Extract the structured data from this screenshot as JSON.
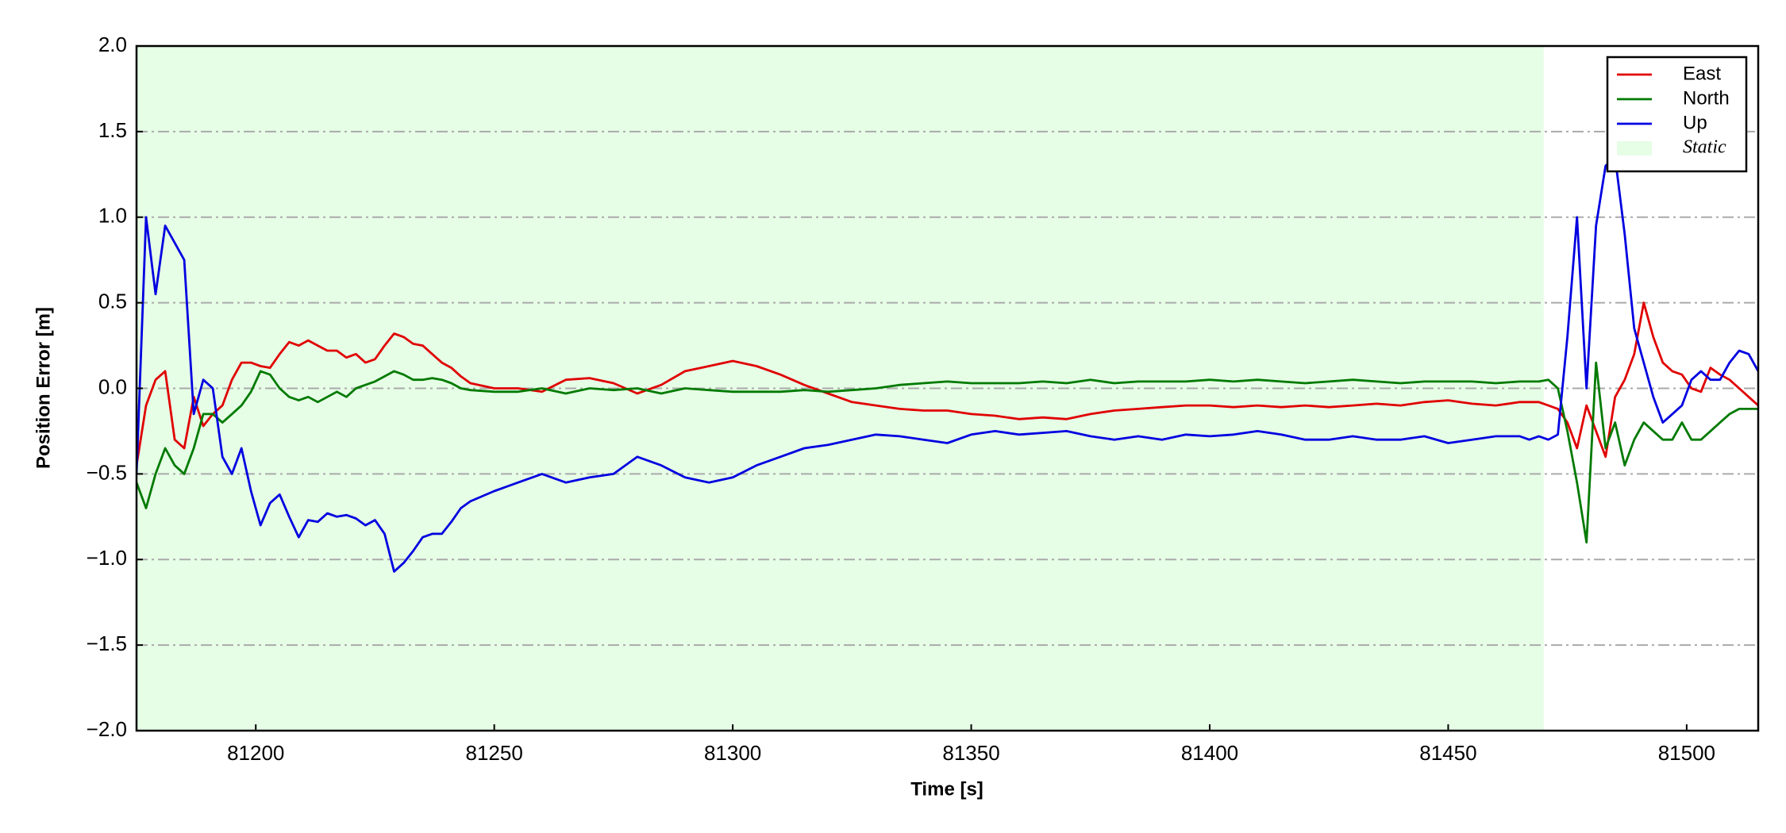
{
  "chart_data": {
    "type": "line",
    "xlabel": "Time [s]",
    "ylabel": "Position Error [m]",
    "xlim": [
      81175,
      81515
    ],
    "ylim": [
      -2,
      2
    ],
    "xticks": [
      81200,
      81250,
      81300,
      81350,
      81400,
      81450,
      81500
    ],
    "yticks": [
      {
        "value": -2,
        "label": "−2.0"
      },
      {
        "value": -1.5,
        "label": "−1.5"
      },
      {
        "value": -1,
        "label": "−1.0"
      },
      {
        "value": -0.5,
        "label": "−0.5"
      },
      {
        "value": 0,
        "label": "0.0"
      },
      0.5,
      {
        "value": 1,
        "label": "1.0"
      },
      1.5,
      {
        "value": 2,
        "label": "2.0"
      }
    ],
    "grid": true,
    "legend": "upper right",
    "static": {
      "label": "Static",
      "range": [
        81175,
        81470
      ],
      "color": "#e6fde6"
    },
    "x": [
      81175,
      81177,
      81179,
      81181,
      81183,
      81185,
      81187,
      81189,
      81191,
      81193,
      81195,
      81197,
      81199,
      81201,
      81203,
      81205,
      81207,
      81209,
      81211,
      81213,
      81215,
      81217,
      81219,
      81221,
      81223,
      81225,
      81227,
      81229,
      81231,
      81233,
      81235,
      81237,
      81239,
      81241,
      81243,
      81245,
      81250,
      81255,
      81260,
      81265,
      81270,
      81275,
      81280,
      81285,
      81290,
      81295,
      81300,
      81305,
      81310,
      81315,
      81320,
      81325,
      81330,
      81335,
      81340,
      81345,
      81350,
      81355,
      81360,
      81365,
      81370,
      81375,
      81380,
      81385,
      81390,
      81395,
      81400,
      81405,
      81410,
      81415,
      81420,
      81425,
      81430,
      81435,
      81440,
      81445,
      81450,
      81455,
      81460,
      81465,
      81467,
      81469,
      81471,
      81473,
      81475,
      81477,
      81479,
      81481,
      81483,
      81485,
      81487,
      81489,
      81491,
      81493,
      81495,
      81497,
      81499,
      81501,
      81503,
      81505,
      81507,
      81509,
      81511,
      81513,
      81515
    ],
    "series": [
      {
        "name": "East",
        "color": "#e00000",
        "values": [
          -0.45,
          -0.1,
          0.05,
          0.1,
          -0.3,
          -0.35,
          -0.05,
          -0.22,
          -0.15,
          -0.1,
          0.05,
          0.15,
          0.15,
          0.13,
          0.12,
          0.2,
          0.27,
          0.25,
          0.28,
          0.25,
          0.22,
          0.22,
          0.18,
          0.2,
          0.15,
          0.17,
          0.25,
          0.32,
          0.3,
          0.26,
          0.25,
          0.2,
          0.15,
          0.12,
          0.07,
          0.03,
          0.0,
          0.0,
          -0.02,
          0.05,
          0.06,
          0.03,
          -0.03,
          0.02,
          0.1,
          0.13,
          0.16,
          0.13,
          0.08,
          0.02,
          -0.03,
          -0.08,
          -0.1,
          -0.12,
          -0.13,
          -0.13,
          -0.15,
          -0.16,
          -0.18,
          -0.17,
          -0.18,
          -0.15,
          -0.13,
          -0.12,
          -0.11,
          -0.1,
          -0.1,
          -0.11,
          -0.1,
          -0.11,
          -0.1,
          -0.11,
          -0.1,
          -0.09,
          -0.1,
          -0.08,
          -0.07,
          -0.09,
          -0.1,
          -0.08,
          -0.08,
          -0.08,
          -0.1,
          -0.12,
          -0.2,
          -0.35,
          -0.1,
          -0.25,
          -0.4,
          -0.05,
          0.05,
          0.2,
          0.5,
          0.3,
          0.15,
          0.1,
          0.08,
          0.0,
          -0.02,
          0.12,
          0.08,
          0.05,
          0.0,
          -0.05,
          -0.1
        ]
      },
      {
        "name": "North",
        "color": "#007a00",
        "values": [
          -0.55,
          -0.7,
          -0.5,
          -0.35,
          -0.45,
          -0.5,
          -0.35,
          -0.15,
          -0.15,
          -0.2,
          -0.15,
          -0.1,
          -0.02,
          0.1,
          0.08,
          0.0,
          -0.05,
          -0.07,
          -0.05,
          -0.08,
          -0.05,
          -0.02,
          -0.05,
          0.0,
          0.02,
          0.04,
          0.07,
          0.1,
          0.08,
          0.05,
          0.05,
          0.06,
          0.05,
          0.03,
          0.0,
          -0.01,
          -0.02,
          -0.02,
          0.0,
          -0.03,
          0.0,
          -0.01,
          0.0,
          -0.03,
          0.0,
          -0.01,
          -0.02,
          -0.02,
          -0.02,
          -0.01,
          -0.02,
          -0.01,
          0.0,
          0.02,
          0.03,
          0.04,
          0.03,
          0.03,
          0.03,
          0.04,
          0.03,
          0.05,
          0.03,
          0.04,
          0.04,
          0.04,
          0.05,
          0.04,
          0.05,
          0.04,
          0.03,
          0.04,
          0.05,
          0.04,
          0.03,
          0.04,
          0.04,
          0.04,
          0.03,
          0.04,
          0.04,
          0.04,
          0.05,
          0.0,
          -0.25,
          -0.55,
          -0.9,
          0.15,
          -0.35,
          -0.2,
          -0.45,
          -0.3,
          -0.2,
          -0.25,
          -0.3,
          -0.3,
          -0.2,
          -0.3,
          -0.3,
          -0.25,
          -0.2,
          -0.15,
          -0.12,
          -0.12,
          -0.12
        ]
      },
      {
        "name": "Up",
        "color": "#0000e0",
        "values": [
          -0.5,
          1.0,
          0.55,
          0.95,
          0.85,
          0.75,
          -0.15,
          0.05,
          0.0,
          -0.4,
          -0.5,
          -0.35,
          -0.6,
          -0.8,
          -0.67,
          -0.62,
          -0.75,
          -0.87,
          -0.77,
          -0.78,
          -0.73,
          -0.75,
          -0.74,
          -0.76,
          -0.8,
          -0.77,
          -0.85,
          -1.07,
          -1.02,
          -0.95,
          -0.87,
          -0.85,
          -0.85,
          -0.78,
          -0.7,
          -0.66,
          -0.6,
          -0.55,
          -0.5,
          -0.55,
          -0.52,
          -0.5,
          -0.4,
          -0.45,
          -0.52,
          -0.55,
          -0.52,
          -0.45,
          -0.4,
          -0.35,
          -0.33,
          -0.3,
          -0.27,
          -0.28,
          -0.3,
          -0.32,
          -0.27,
          -0.25,
          -0.27,
          -0.26,
          -0.25,
          -0.28,
          -0.3,
          -0.28,
          -0.3,
          -0.27,
          -0.28,
          -0.27,
          -0.25,
          -0.27,
          -0.3,
          -0.3,
          -0.28,
          -0.3,
          -0.3,
          -0.28,
          -0.32,
          -0.3,
          -0.28,
          -0.28,
          -0.3,
          -0.28,
          -0.3,
          -0.27,
          0.3,
          1.0,
          0.0,
          0.95,
          1.3,
          1.35,
          0.9,
          0.35,
          0.15,
          -0.05,
          -0.2,
          -0.15,
          -0.1,
          0.05,
          0.1,
          0.05,
          0.05,
          0.15,
          0.22,
          0.2,
          0.1
        ]
      }
    ]
  }
}
